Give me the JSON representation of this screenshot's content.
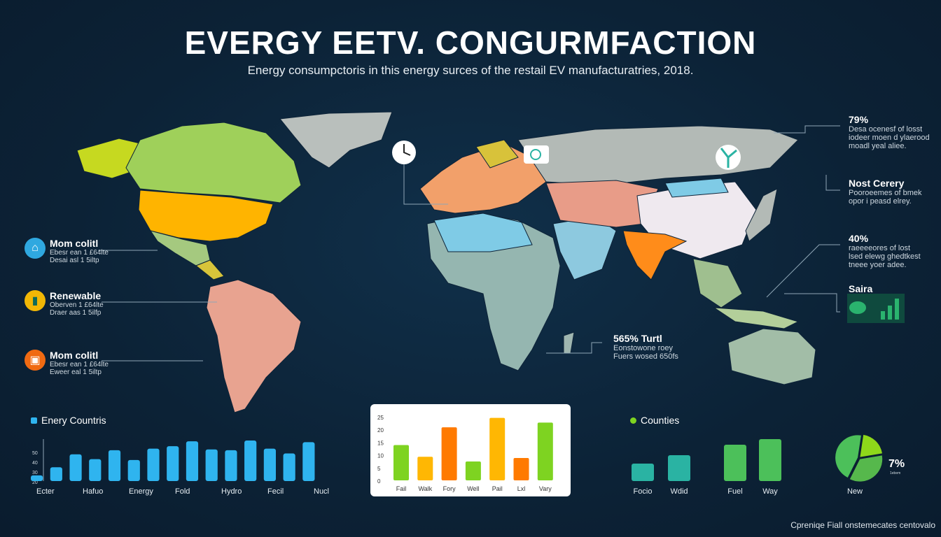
{
  "header": {
    "title": "EVERGY EETV. CONGURMFACTION",
    "subtitle": "Energy consumpctoris in this energy surces of the restail EV manufacturatries, 2018."
  },
  "legend_items": [
    {
      "title": "Mom colitl",
      "desc1": "Ebesr ean 1 £64lte",
      "desc2": "Desai asl 1 5iltp",
      "color": "#2fa8e0",
      "icon": "factory-icon"
    },
    {
      "title": "Renewable",
      "desc1": "Oberven 1 £64lte",
      "desc2": "Draer aas 1 5ilfp",
      "color": "#f2b705",
      "icon": "solar-panel-icon"
    },
    {
      "title": "Mom colitl",
      "desc1": "Ebesr ean 1 £64lte",
      "desc2": "Eweer eal 1 5iltp",
      "color": "#f06a12",
      "icon": "fuel-pump-icon"
    }
  ],
  "callouts": [
    {
      "title": "79%",
      "lines": [
        "Desa ocenesf of losst",
        "iodeer moen d ylaerood",
        "moadl yeal aliee."
      ]
    },
    {
      "title": "Nost Cerery",
      "lines": [
        "Pooroeemes of bmek",
        "opor i peasd elrey."
      ]
    },
    {
      "title": "40%",
      "lines": [
        "raeeeeores of lost",
        "lsed elewg ghedtkest",
        "tneee yoer adee."
      ]
    },
    {
      "title": "Saira",
      "lines": []
    },
    {
      "title": "565% Turtl",
      "lines": [
        "Eonstowone roey",
        "Fuers wosed 650fs"
      ]
    }
  ],
  "colors": {
    "background": "#0d2338",
    "blue": "#2fb4ef",
    "green": "#7ed321",
    "amber": "#ffb703",
    "orange": "#ff7a00",
    "teal": "#2ab3a3",
    "mid_green": "#4cc05a"
  },
  "chart_data": [
    {
      "type": "bar",
      "title": "Enery Countris",
      "legend_color": "#2fb4ef",
      "yticks": [
        "20",
        "30",
        "40",
        "50"
      ],
      "ylim": [
        0,
        50
      ],
      "values": [
        7,
        17,
        33,
        27,
        38,
        26,
        40,
        43,
        49,
        39,
        38,
        50,
        40,
        34,
        48
      ],
      "xlabels": [
        "Ecter",
        "Hafuo",
        "Energy",
        "Fold",
        "Hydro",
        "Fecil",
        "Nuclary"
      ]
    },
    {
      "type": "bar",
      "title": "",
      "yticks": [
        "0",
        "5",
        "10",
        "15",
        "20",
        "25"
      ],
      "ylim": [
        0,
        27
      ],
      "categories": [
        "Fail",
        "Walk",
        "Fory",
        "Well",
        "Pail",
        "Lxl",
        "Vary"
      ],
      "values": [
        15,
        10,
        22.5,
        8,
        26.5,
        9.5,
        24.5
      ],
      "colors": [
        "#7ed321",
        "#ffb703",
        "#ff7a00",
        "#7ed321",
        "#ffb703",
        "#ff7a00",
        "#7ed321"
      ]
    },
    {
      "type": "bar",
      "title": "Counties",
      "legend_color": "#7ed321",
      "categories": [
        "Focio",
        "Wdid",
        "Fuel",
        "Way"
      ],
      "values": [
        25,
        37,
        52,
        60
      ],
      "colors": [
        "#2ab3a3",
        "#2ab3a3",
        "#4cc05a",
        "#4cc05a"
      ]
    },
    {
      "type": "pie",
      "label": "New",
      "annotation": "7%",
      "annotation_sub": "1ebem",
      "values": [
        45,
        20,
        35
      ],
      "colors": [
        "#4cc05a",
        "#8ed81a",
        "#56b84c"
      ]
    }
  ],
  "footer": "Cpreniqe Fiall onstemecates centovalo"
}
